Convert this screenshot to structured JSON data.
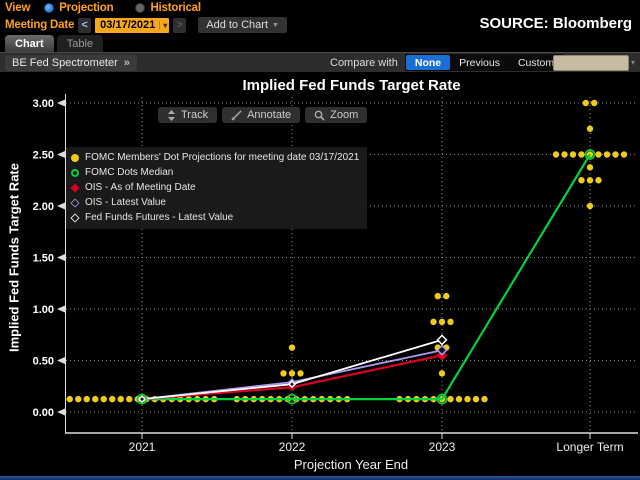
{
  "header": {
    "view_label": "View",
    "view_options": [
      {
        "label": "Projection",
        "selected": true
      },
      {
        "label": "Historical",
        "selected": false
      }
    ],
    "meeting_date_label": "Meeting Date",
    "meeting_date_value": "03/17/2021",
    "prev_arrow": "<",
    "next_arrow": ">",
    "date_caret": "▾",
    "add_to_chart_label": "Add to Chart",
    "add_to_chart_caret": "▼",
    "source_text": "SOURCE: Bloomberg"
  },
  "tabs": [
    {
      "label": "Chart",
      "active": true
    },
    {
      "label": "Table",
      "active": false
    }
  ],
  "toolbar": {
    "left_button_label": "BE Fed Spectrometer",
    "left_button_chevrons": "»",
    "compare_label": "Compare with",
    "compare_options": [
      {
        "label": "None",
        "selected": true
      },
      {
        "label": "Previous",
        "selected": false
      },
      {
        "label": "Custom",
        "selected": false
      }
    ],
    "beige_caret": "▾"
  },
  "chart_tools": [
    {
      "label": "Track",
      "icon": "track-icon"
    },
    {
      "label": "Annotate",
      "icon": "annotate-icon"
    },
    {
      "label": "Zoom",
      "icon": "zoom-icon"
    }
  ],
  "colors": {
    "accent_orange": "#ffa01e",
    "selected_blue": "#1a6fd4",
    "dot_yellow": "#f0cb1a",
    "median_green": "#00d23c",
    "ois_red": "#d8001e",
    "ois_purple": "#a79bee",
    "futures_white": "#ffffff",
    "beige_input": "#c7bba1"
  },
  "chart_data": {
    "type": "scatter",
    "title": "Implied Fed Funds Target Rate",
    "xlabel": "Projection Year End",
    "ylabel": "Implied Fed Funds Target Rate",
    "ylim": [
      0.0,
      3.0
    ],
    "ytick_step": 0.5,
    "grid": "dotted",
    "categories": [
      "2021",
      "2022",
      "2023",
      "Longer Term"
    ],
    "legend_position": "upper-left",
    "legend": [
      {
        "marker": "circle-filled",
        "color": "#f0cb1a",
        "label": "FOMC Members' Dot Projections for meeting date 03/17/2021"
      },
      {
        "marker": "circle-open",
        "color": "#00d23c",
        "label": "FOMC Dots Median"
      },
      {
        "marker": "diamond-filled",
        "color": "#d8001e",
        "label": "OIS - As of Meeting Date"
      },
      {
        "marker": "diamond-open",
        "color": "#a79bee",
        "label": "OIS - Latest Value"
      },
      {
        "marker": "diamond-open",
        "color": "#ffffff",
        "label": "Fed Funds Futures - Latest Value"
      }
    ],
    "fomc_dots": {
      "name": "FOMC Members' Dot Projections",
      "color": "#f0cb1a",
      "points": [
        {
          "x": 0,
          "rate": 0.125,
          "count": 18
        },
        {
          "x": 1,
          "rate": 0.125,
          "count": 14
        },
        {
          "x": 1,
          "rate": 0.375,
          "count": 3
        },
        {
          "x": 1,
          "rate": 0.625,
          "count": 1
        },
        {
          "x": 2,
          "rate": 0.125,
          "count": 11
        },
        {
          "x": 2,
          "rate": 0.375,
          "count": 1
        },
        {
          "x": 2,
          "rate": 0.625,
          "count": 2
        },
        {
          "x": 2,
          "rate": 0.875,
          "count": 3
        },
        {
          "x": 2,
          "rate": 1.125,
          "count": 2
        },
        {
          "x": 3,
          "rate": 2.0,
          "count": 1
        },
        {
          "x": 3,
          "rate": 2.25,
          "count": 3
        },
        {
          "x": 3,
          "rate": 2.375,
          "count": 1
        },
        {
          "x": 3,
          "rate": 2.5,
          "count": 9
        },
        {
          "x": 3,
          "rate": 2.75,
          "count": 1
        },
        {
          "x": 3,
          "rate": 3.0,
          "count": 2
        }
      ]
    },
    "series": [
      {
        "key": "fomc-median",
        "name": "FOMC Dots Median",
        "color": "#00d23c",
        "marker": "circle-open",
        "values": [
          0.125,
          0.125,
          0.125,
          2.5
        ]
      },
      {
        "key": "ois-meeting",
        "name": "OIS - As of Meeting Date",
        "color": "#d8001e",
        "marker": "diamond-filled",
        "values": [
          0.125,
          0.24,
          0.55
        ]
      },
      {
        "key": "ois-latest",
        "name": "OIS - Latest Value",
        "color": "#a79bee",
        "marker": "diamond-open",
        "values": [
          0.125,
          0.29,
          0.6
        ]
      },
      {
        "key": "futures-latest",
        "name": "Fed Funds Futures - Latest Value",
        "color": "#ffffff",
        "marker": "diamond-open",
        "values": [
          0.125,
          0.27,
          0.7
        ]
      }
    ]
  }
}
